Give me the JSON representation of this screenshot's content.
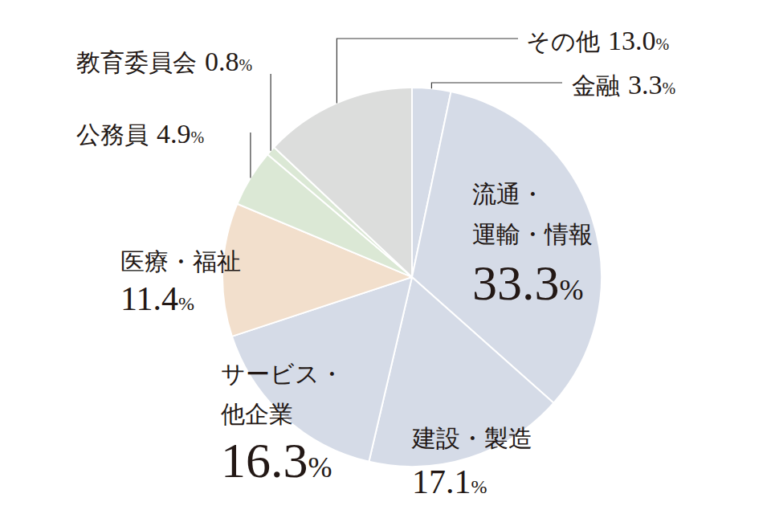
{
  "chart_data": {
    "type": "pie",
    "categories": [
      "金融",
      "流通・運輸・情報",
      "建設・製造",
      "サービス・他企業",
      "医療・福祉",
      "公務員",
      "教育委員会",
      "その他"
    ],
    "values": [
      3.3,
      33.3,
      17.1,
      16.3,
      11.4,
      4.9,
      0.8,
      13.0
    ],
    "value_labels": [
      "3.3%",
      "33.3%",
      "17.1%",
      "16.3%",
      "11.4%",
      "4.9%",
      "0.8%",
      "13.0%"
    ],
    "colors": [
      "#d5dbe7",
      "#d5dbe7",
      "#d5dbe7",
      "#d5dbe7",
      "#f2dfcc",
      "#dbe8d5",
      "#dbe8d5",
      "#dcdddc"
    ],
    "data_labels": true
  }
}
